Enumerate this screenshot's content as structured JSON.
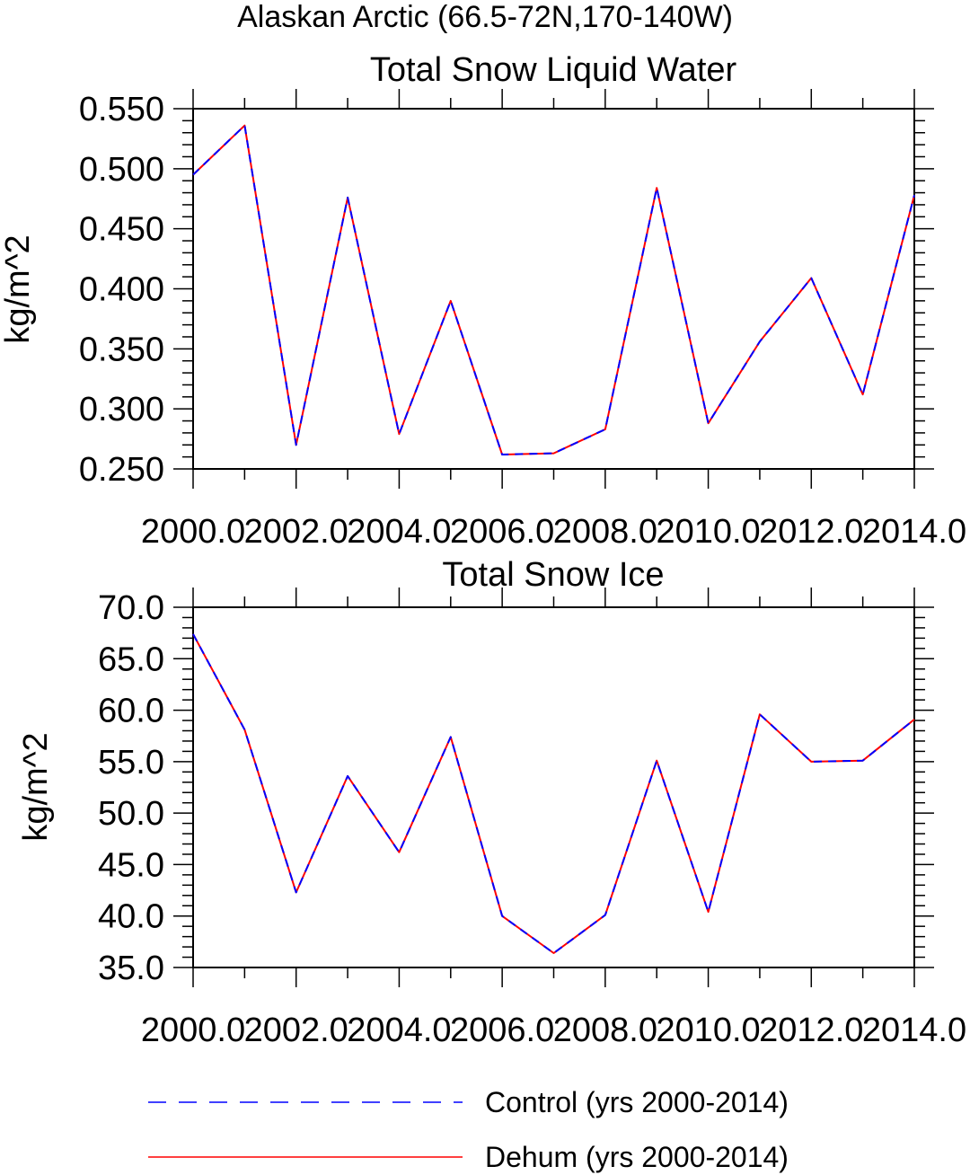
{
  "figure": {
    "title": "Alaskan Arctic (66.5-72N,170-140W)"
  },
  "legend": {
    "placement": "bottom",
    "entries": [
      {
        "label": "Control (yrs 2000-2014)",
        "color": "#0000ff",
        "dash": "dashed"
      },
      {
        "label": "Dehum (yrs 2000-2014)",
        "color": "#ff0000",
        "dash": "solid"
      }
    ]
  },
  "chart_data": [
    {
      "type": "line",
      "title": "Total Snow Liquid Water",
      "xlabel": "",
      "ylabel": "kg/m^2",
      "xlim": [
        2000,
        2014
      ],
      "ylim": [
        0.25,
        0.55
      ],
      "xticks": [
        2000,
        2002,
        2004,
        2006,
        2008,
        2010,
        2012,
        2014
      ],
      "xtick_labels": [
        "2000.0",
        "2002.0",
        "2004.0",
        "2006.0",
        "2008.0",
        "2010.0",
        "2012.0",
        "2014.0"
      ],
      "yticks": [
        0.25,
        0.3,
        0.35,
        0.4,
        0.45,
        0.5,
        0.55
      ],
      "ytick_labels": [
        "0.250",
        "0.300",
        "0.350",
        "0.400",
        "0.450",
        "0.500",
        "0.550"
      ],
      "grid": false,
      "x": [
        2000,
        2001,
        2002,
        2003,
        2004,
        2005,
        2006,
        2007,
        2008,
        2009,
        2010,
        2011,
        2012,
        2013,
        2014
      ],
      "series": [
        {
          "name": "Control (yrs 2000-2014)",
          "color": "#0000ff",
          "dash": "dashed",
          "values": [
            0.495,
            0.536,
            0.27,
            0.476,
            0.279,
            0.39,
            0.262,
            0.263,
            0.283,
            0.484,
            0.288,
            0.356,
            0.409,
            0.312,
            0.478
          ]
        },
        {
          "name": "Dehum (yrs 2000-2014)",
          "color": "#ff0000",
          "dash": "solid",
          "values": [
            0.495,
            0.536,
            0.27,
            0.476,
            0.279,
            0.39,
            0.262,
            0.263,
            0.283,
            0.484,
            0.288,
            0.356,
            0.409,
            0.312,
            0.478
          ]
        }
      ]
    },
    {
      "type": "line",
      "title": "Total Snow Ice",
      "xlabel": "",
      "ylabel": "kg/m^2",
      "xlim": [
        2000,
        2014
      ],
      "ylim": [
        35,
        70
      ],
      "xticks": [
        2000,
        2002,
        2004,
        2006,
        2008,
        2010,
        2012,
        2014
      ],
      "xtick_labels": [
        "2000.0",
        "2002.0",
        "2004.0",
        "2006.0",
        "2008.0",
        "2010.0",
        "2012.0",
        "2014.0"
      ],
      "yticks": [
        35,
        40,
        45,
        50,
        55,
        60,
        65,
        70
      ],
      "ytick_labels": [
        "35.0",
        "40.0",
        "45.0",
        "50.0",
        "55.0",
        "60.0",
        "65.0",
        "70.0"
      ],
      "grid": false,
      "x": [
        2000,
        2001,
        2002,
        2003,
        2004,
        2005,
        2006,
        2007,
        2008,
        2009,
        2010,
        2011,
        2012,
        2013,
        2014
      ],
      "series": [
        {
          "name": "Control (yrs 2000-2014)",
          "color": "#0000ff",
          "dash": "dashed",
          "values": [
            67.4,
            58.1,
            42.3,
            53.6,
            46.2,
            57.4,
            40.0,
            36.4,
            40.1,
            55.1,
            40.4,
            59.6,
            55.0,
            55.1,
            59.1
          ]
        },
        {
          "name": "Dehum (yrs 2000-2014)",
          "color": "#ff0000",
          "dash": "solid",
          "values": [
            67.4,
            58.1,
            42.3,
            53.6,
            46.2,
            57.4,
            40.0,
            36.4,
            40.1,
            55.1,
            40.4,
            59.6,
            55.0,
            55.1,
            59.1
          ]
        }
      ]
    }
  ]
}
